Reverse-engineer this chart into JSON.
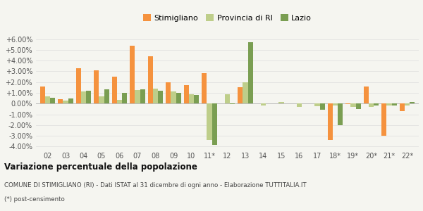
{
  "categories": [
    "02",
    "03",
    "04",
    "05",
    "06",
    "07",
    "08",
    "09",
    "10",
    "11*",
    "12",
    "13",
    "14",
    "15",
    "16",
    "17",
    "18*",
    "19*",
    "20*",
    "21*",
    "22*"
  ],
  "stimigliano": [
    1.6,
    0.4,
    3.3,
    3.1,
    2.5,
    5.4,
    4.4,
    2.0,
    1.75,
    2.85,
    0.0,
    1.5,
    0.0,
    0.0,
    0.0,
    0.0,
    -3.4,
    -0.05,
    1.6,
    -3.0,
    -0.7
  ],
  "provincia_ri": [
    0.65,
    0.3,
    1.1,
    0.7,
    0.35,
    1.25,
    1.4,
    1.1,
    0.85,
    -3.4,
    0.9,
    2.0,
    -0.2,
    0.15,
    -0.3,
    -0.25,
    -0.2,
    -0.3,
    -0.3,
    -0.2,
    -0.15
  ],
  "lazio": [
    0.55,
    0.45,
    1.2,
    1.3,
    1.0,
    1.35,
    1.2,
    1.0,
    0.8,
    -3.85,
    -0.05,
    5.7,
    0.0,
    0.0,
    0.0,
    -0.6,
    -2.0,
    -0.5,
    -0.2,
    -0.2,
    0.15
  ],
  "color_stimigliano": "#f5923e",
  "color_provincia": "#bece8a",
  "color_lazio": "#7a9e52",
  "title": "Variazione percentuale della popolazione",
  "subtitle": "COMUNE DI STIMIGLIANO (RI) - Dati ISTAT al 31 dicembre di ogni anno - Elaborazione TUTTITALIA.IT",
  "footnote": "(*) post-censimento",
  "ylim": [
    -4.3,
    6.3
  ],
  "yticks": [
    -4.0,
    -3.0,
    -2.0,
    -1.0,
    0.0,
    1.0,
    2.0,
    3.0,
    4.0,
    5.0,
    6.0
  ],
  "bg_color": "#f5f5f0",
  "bar_width": 0.28
}
